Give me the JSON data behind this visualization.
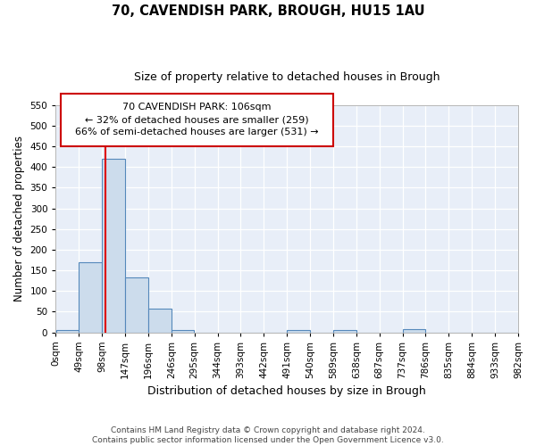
{
  "title1": "70, CAVENDISH PARK, BROUGH, HU15 1AU",
  "title2": "Size of property relative to detached houses in Brough",
  "xlabel": "Distribution of detached houses by size in Brough",
  "ylabel": "Number of detached properties",
  "bin_edges": [
    0,
    49,
    98,
    147,
    196,
    245,
    294,
    343,
    392,
    441,
    490,
    539,
    588,
    637,
    686,
    735,
    784,
    833,
    882,
    931,
    980
  ],
  "bin_labels": [
    "0sqm",
    "49sqm",
    "98sqm",
    "147sqm",
    "196sqm",
    "246sqm",
    "295sqm",
    "344sqm",
    "393sqm",
    "442sqm",
    "491sqm",
    "540sqm",
    "589sqm",
    "638sqm",
    "687sqm",
    "737sqm",
    "786sqm",
    "835sqm",
    "884sqm",
    "933sqm",
    "982sqm"
  ],
  "bar_heights": [
    5,
    170,
    420,
    132,
    58,
    5,
    0,
    0,
    0,
    0,
    5,
    0,
    5,
    0,
    0,
    8,
    0,
    0,
    0,
    0
  ],
  "bar_color": "#ccdcec",
  "bar_edge_color": "#5588bb",
  "property_size": 106,
  "red_line_color": "#dd0000",
  "ylim": [
    0,
    550
  ],
  "yticks": [
    0,
    50,
    100,
    150,
    200,
    250,
    300,
    350,
    400,
    450,
    500,
    550
  ],
  "xlim": [
    0,
    980
  ],
  "annotation_line1": "70 CAVENDISH PARK: 106sqm",
  "annotation_line2": "← 32% of detached houses are smaller (259)",
  "annotation_line3": "66% of semi-detached houses are larger (531) →",
  "annotation_box_color": "#cc0000",
  "footnote": "Contains HM Land Registry data © Crown copyright and database right 2024.\nContains public sector information licensed under the Open Government Licence v3.0.",
  "background_color": "#e8eef8",
  "grid_color": "#ffffff",
  "title1_fontsize": 10.5,
  "title2_fontsize": 9,
  "ylabel_fontsize": 8.5,
  "xlabel_fontsize": 9,
  "tick_fontsize": 7.5,
  "annot_fontsize": 8,
  "footnote_fontsize": 6.5
}
